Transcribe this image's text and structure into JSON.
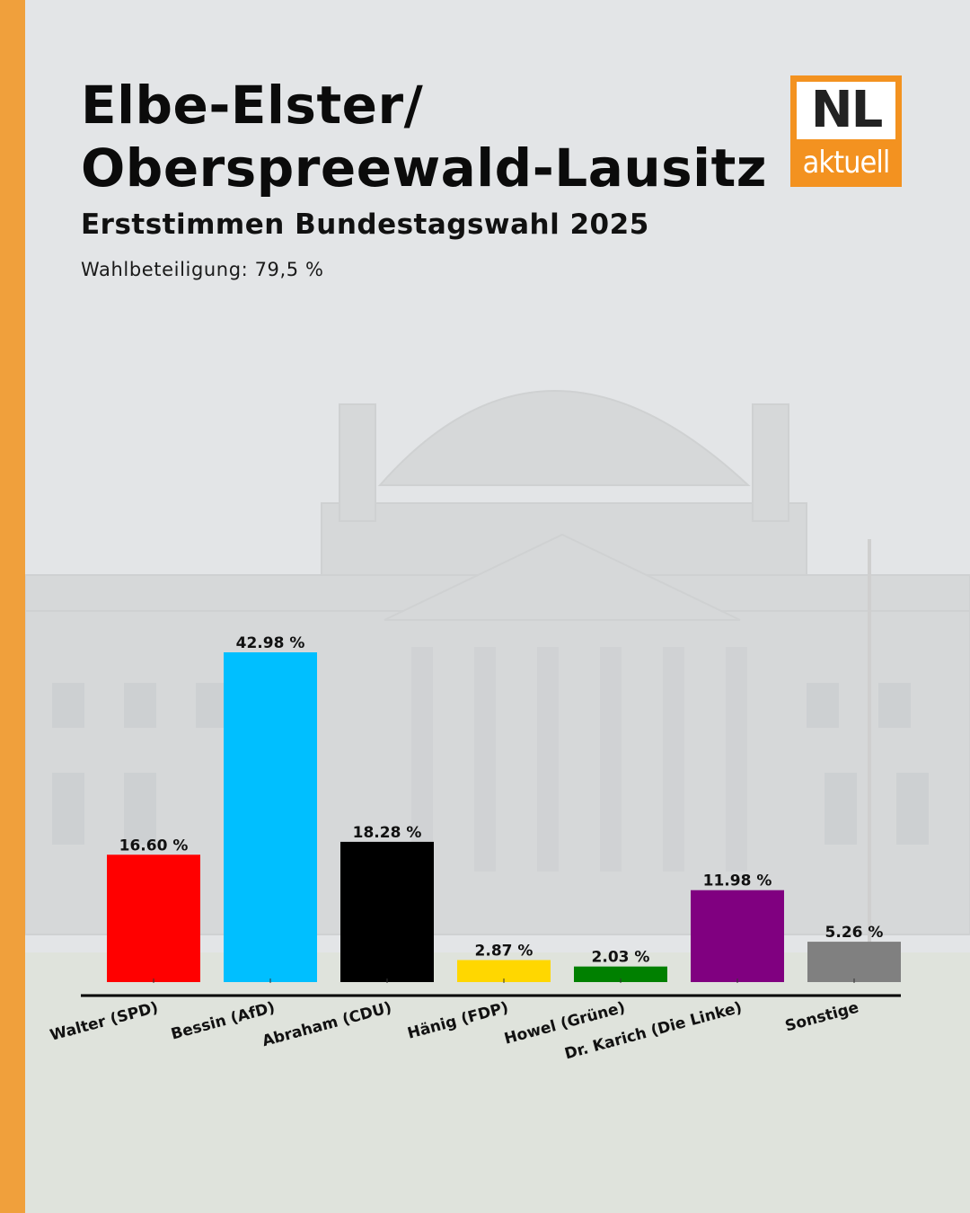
{
  "header": {
    "title_line1": "Elbe-Elster/",
    "title_line2": "Oberspreewald-Lausitz",
    "subtitle": "Erststimmen Bundestagswahl 2025",
    "turnout": "Wahlbeteiligung: 79,5 %"
  },
  "logo": {
    "top": "NL",
    "bottom": "aktuell",
    "color": "#f39220"
  },
  "colors": {
    "accent_stripe": "#f0a03c"
  },
  "chart_data": {
    "type": "bar",
    "title": "Erststimmen Bundestagswahl 2025",
    "ylim": [
      0,
      45
    ],
    "grid": false,
    "categories": [
      "Walter (SPD)",
      "Bessin (AfD)",
      "Abraham (CDU)",
      "Hänig (FDP)",
      "Howel (Grüne)",
      "Dr. Karich (Die Linke)",
      "Sonstige"
    ],
    "values": [
      16.6,
      42.98,
      18.28,
      2.87,
      2.03,
      11.98,
      5.26
    ],
    "value_labels": [
      "16.60 %",
      "42.98 %",
      "18.28 %",
      "2.87 %",
      "2.03 %",
      "11.98 %",
      "5.26 %"
    ],
    "colors": [
      "#ff0000",
      "#00bfff",
      "#000000",
      "#ffd700",
      "#008000",
      "#800080",
      "#808080"
    ]
  }
}
